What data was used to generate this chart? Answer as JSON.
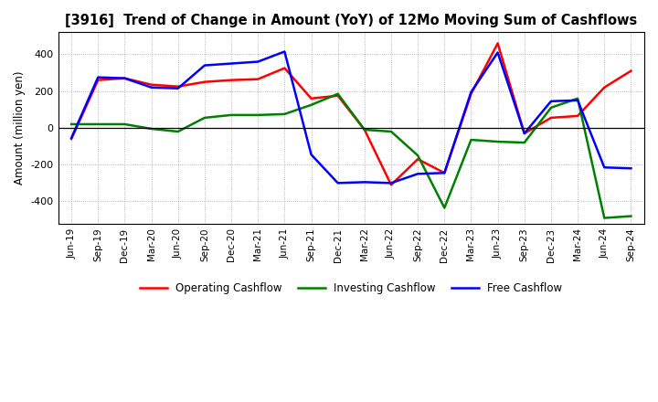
{
  "title": "[3916]  Trend of Change in Amount (YoY) of 12Mo Moving Sum of Cashflows",
  "ylabel": "Amount (million yen)",
  "x_labels": [
    "Jun-19",
    "Sep-19",
    "Dec-19",
    "Mar-20",
    "Jun-20",
    "Sep-20",
    "Dec-20",
    "Mar-21",
    "Jun-21",
    "Sep-21",
    "Dec-21",
    "Mar-22",
    "Jun-22",
    "Sep-22",
    "Dec-22",
    "Mar-23",
    "Jun-23",
    "Sep-23",
    "Dec-23",
    "Mar-24",
    "Jun-24",
    "Sep-24"
  ],
  "operating": [
    -60,
    260,
    270,
    235,
    225,
    250,
    260,
    265,
    325,
    160,
    175,
    -10,
    -310,
    -170,
    -245,
    185,
    460,
    -30,
    55,
    65,
    220,
    310
  ],
  "investing": [
    20,
    20,
    20,
    -5,
    -20,
    55,
    70,
    70,
    75,
    125,
    185,
    -10,
    -20,
    -150,
    -435,
    -65,
    -75,
    -80,
    110,
    160,
    -490,
    -480
  ],
  "free": [
    -55,
    275,
    270,
    220,
    215,
    340,
    350,
    360,
    415,
    -145,
    -300,
    -295,
    -300,
    -250,
    -245,
    195,
    410,
    -30,
    145,
    150,
    -215,
    -220
  ],
  "operating_color": "#ff0000",
  "investing_color": "#008000",
  "free_color": "#0000ff",
  "ylim": [
    -520,
    520
  ],
  "yticks": [
    -400,
    -200,
    0,
    200,
    400
  ],
  "background_color": "#ffffff",
  "grid_color": "#999999"
}
